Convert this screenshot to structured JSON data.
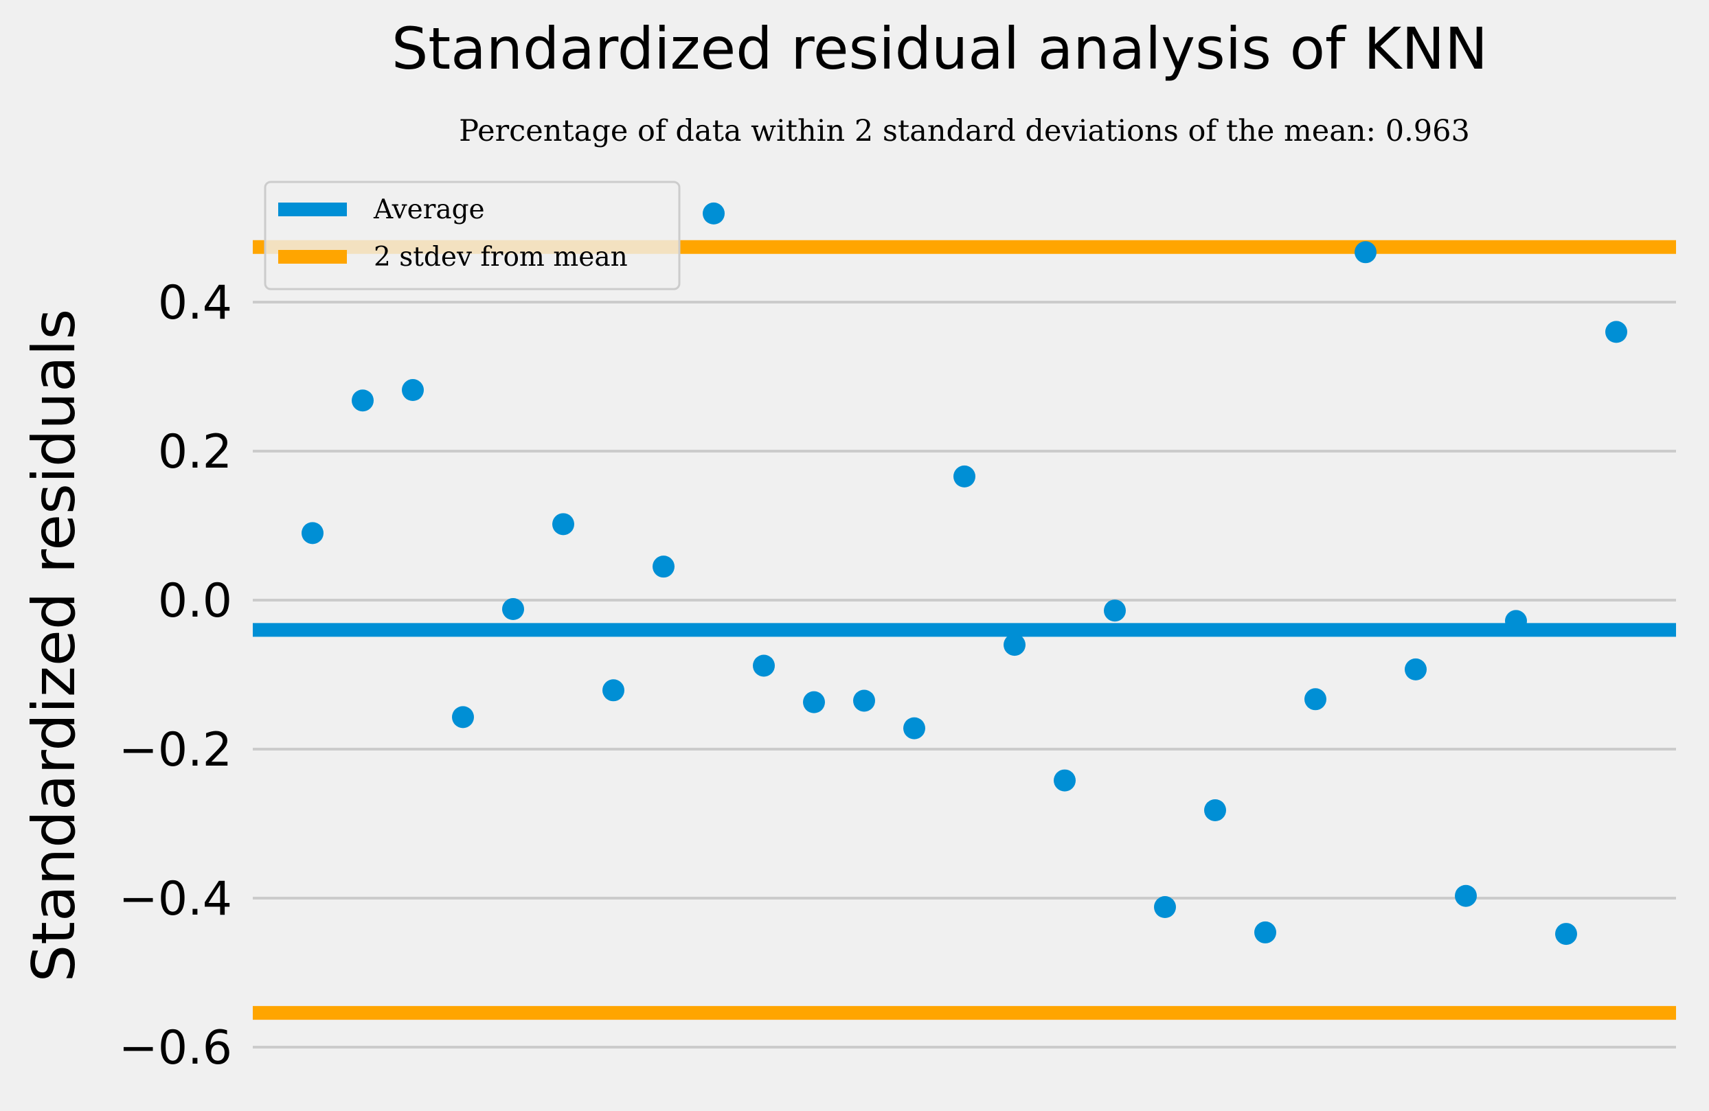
{
  "chart_data": {
    "type": "scatter",
    "title": "Standardized residual analysis of KNN",
    "subtitle": "Percentage of data within 2 standard deviations of the mean: 0.963",
    "xlabel": "",
    "ylabel": "Standardized residuals",
    "ylim": [
      -0.625,
      0.6
    ],
    "yticks": [
      0.4,
      0.2,
      0.0,
      -0.2,
      -0.4,
      -0.6
    ],
    "ytick_labels": [
      "0.4",
      "0.2",
      "0.0",
      "−0.2",
      "−0.4",
      "−0.6"
    ],
    "grid": "horizontal",
    "legend_position": "top-left",
    "series": [
      {
        "name": "Average",
        "type": "hline",
        "y": -0.04,
        "color": "#008fd5"
      },
      {
        "name": "2 stdev from mean",
        "type": "hlines",
        "y": [
          0.474,
          -0.554
        ],
        "color": "#ffa500"
      },
      {
        "type": "points",
        "color": "#008fd5",
        "x": [
          1,
          2,
          3,
          4,
          5,
          6,
          7,
          8,
          9,
          10,
          11,
          12,
          13,
          14,
          15,
          16,
          17,
          18,
          19,
          20,
          21,
          22,
          23,
          24,
          25,
          26,
          27
        ],
        "y": [
          0.09,
          0.268,
          0.282,
          -0.157,
          -0.012,
          0.102,
          -0.121,
          0.045,
          0.519,
          -0.088,
          -0.137,
          -0.135,
          -0.172,
          0.166,
          -0.06,
          -0.242,
          -0.014,
          -0.412,
          -0.282,
          -0.446,
          -0.133,
          0.467,
          -0.093,
          -0.397,
          -0.028,
          -0.448,
          0.36
        ]
      }
    ]
  }
}
